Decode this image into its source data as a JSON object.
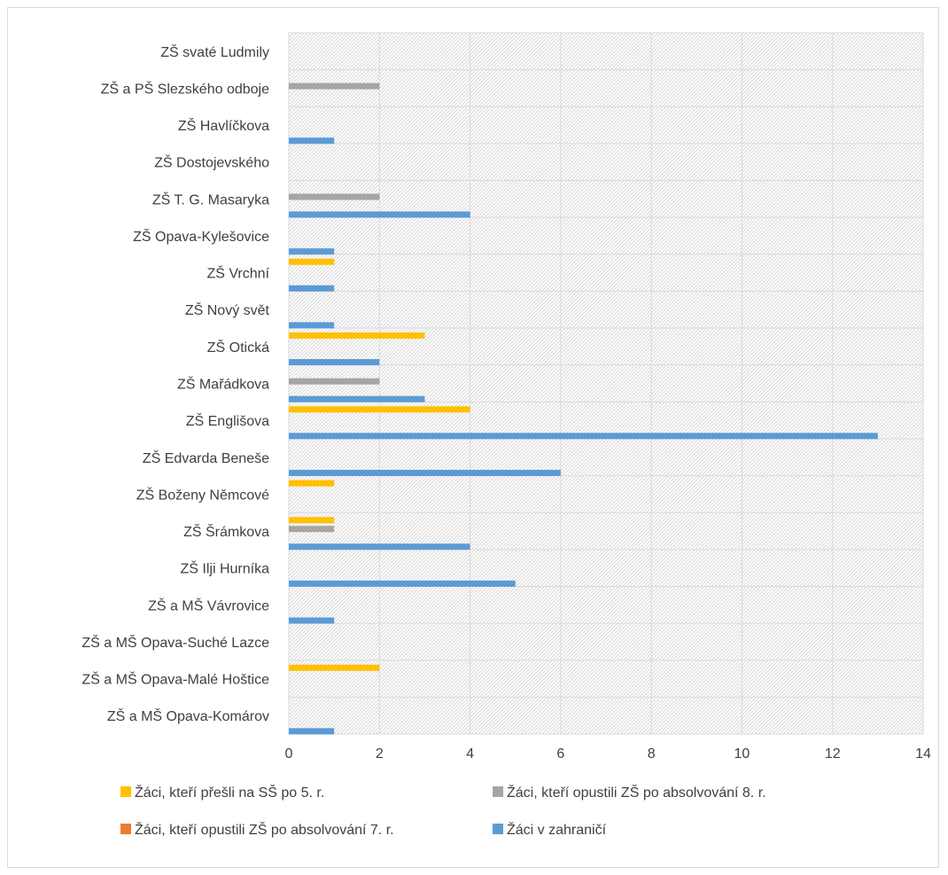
{
  "chart_data": {
    "type": "bar",
    "orientation": "horizontal",
    "categories": [
      "ZŠ svaté Ludmily",
      "ZŠ a PŠ Slezského odboje",
      "ZŠ Havlíčkova",
      "ZŠ Dostojevského",
      "ZŠ  T. G. Masaryka",
      "ZŠ Opava-Kylešovice",
      "ZŠ Vrchní",
      "ZŠ Nový svět",
      "ZŠ Otická",
      "ZŠ Mařádkova",
      "ZŠ Englišova",
      "ZŠ Edvarda Beneše",
      "ZŠ Boženy Němcové",
      "ZŠ Šrámkova",
      "ZŠ Ilji Hurníka",
      "ZŠ a MŠ Vávrovice",
      "ZŠ a MŠ Opava-Suché Lazce",
      "ZŠ a MŠ Opava-Malé Hoštice",
      "ZŠ a MŠ Opava-Komárov"
    ],
    "series": [
      {
        "name": "Žáci, kteří přešli na SŠ po 5. r.",
        "color": "#FFC000",
        "values": [
          0,
          0,
          0,
          0,
          0,
          0,
          1,
          0,
          3,
          0,
          4,
          0,
          1,
          1,
          0,
          0,
          0,
          2,
          0
        ]
      },
      {
        "name": "Žáci, kteří opustili ZŠ po absolvování 8. r.",
        "color": "#A5A5A5",
        "values": [
          0,
          2,
          0,
          0,
          2,
          0,
          0,
          0,
          0,
          2,
          0,
          0,
          0,
          1,
          0,
          0,
          0,
          0,
          0
        ]
      },
      {
        "name": "Žáci, kteří opustili ZŠ po absolvování 7. r.",
        "color": "#ED7D31",
        "values": [
          0,
          0,
          0,
          0,
          0,
          0,
          0,
          0,
          0,
          0,
          0,
          0,
          0,
          0,
          0,
          0,
          0,
          0,
          0
        ]
      },
      {
        "name": "Žáci v zahraničí",
        "color": "#5B9BD5",
        "values": [
          0,
          0,
          1,
          0,
          4,
          1,
          1,
          1,
          2,
          3,
          13,
          6,
          0,
          4,
          5,
          1,
          0,
          0,
          1
        ]
      }
    ],
    "xlim": [
      0,
      14
    ],
    "xticks": [
      "0",
      "2",
      "4",
      "6",
      "8",
      "10",
      "12",
      "14"
    ],
    "grid": true,
    "legend_position": "bottom"
  }
}
